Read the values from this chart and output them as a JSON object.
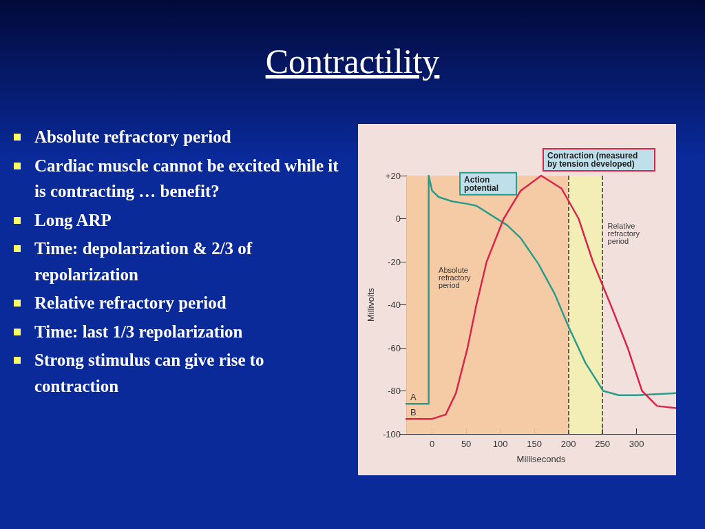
{
  "chart_data": {
    "type": "line",
    "title": "Contractility",
    "xlabel": "Milliseconds",
    "ylabel": "Millivolts",
    "annotations": [
      "Absolute refractory period",
      "Cardiac muscle cannot be excited while it is contracting … benefit?",
      "Long ARP",
      "Time: depolarization & 2/3 of repolarization",
      "Relative refractory period",
      "Time: last 1/3 repolarization",
      "Strong stimulus can give rise to contraction",
      {
        "text": "A",
        "x": -38,
        "y": -86
      },
      {
        "text": "B",
        "x": -38,
        "y": -93
      }
    ],
    "series": [
      {
        "name": "Action potential",
        "color": "#2a9a8a",
        "x": [
          -38,
          -5,
          -5,
          0,
          10,
          30,
          50,
          65,
          90,
          110,
          130,
          156,
          180,
          200,
          225,
          251,
          274,
          300,
          358
        ],
        "values": [
          -86,
          -86,
          20,
          13,
          10,
          8,
          7,
          6,
          1,
          -3,
          -9,
          -21,
          -35,
          -50,
          -67,
          -80,
          -82,
          -82,
          -81
        ]
      },
      {
        "name": "Contraction (measured by tension developed)",
        "color": "#d8254a",
        "x": [
          -38,
          0,
          20,
          35,
          52,
          65,
          80,
          105,
          130,
          160,
          190,
          215,
          236,
          262,
          287,
          308,
          330,
          358
        ],
        "values": [
          -93,
          -93,
          -91,
          -81,
          -60,
          -40,
          -20,
          0,
          13,
          20,
          14,
          0,
          -20,
          -40,
          -60,
          -80,
          -87,
          -88
        ]
      }
    ],
    "xlim": [
      -38,
      358
    ],
    "ylim": [
      -100,
      20
    ],
    "xticks": [
      0,
      50,
      100,
      150,
      200,
      250,
      300
    ],
    "yticks": [
      -100,
      -80,
      -60,
      -40,
      -20,
      0,
      {
        "value": 20,
        "label": "+20"
      }
    ],
    "bands": [
      {
        "axis": "x",
        "from": -38,
        "to": 200,
        "label": "Absolute refractory period",
        "color": "#f5c9a0"
      },
      {
        "axis": "x",
        "from": 200,
        "to": 250,
        "label": "Relative refractory period",
        "color": "#f2efb0"
      }
    ],
    "ref_lines": [
      {
        "axis": "x",
        "value": 200,
        "line_style": "dashed",
        "color": "#333333"
      },
      {
        "axis": "x",
        "value": 250,
        "line_style": "dashed",
        "color": "#333333"
      }
    ],
    "marker": "none",
    "line_style": "solid",
    "grid": false,
    "legend": false
  }
}
